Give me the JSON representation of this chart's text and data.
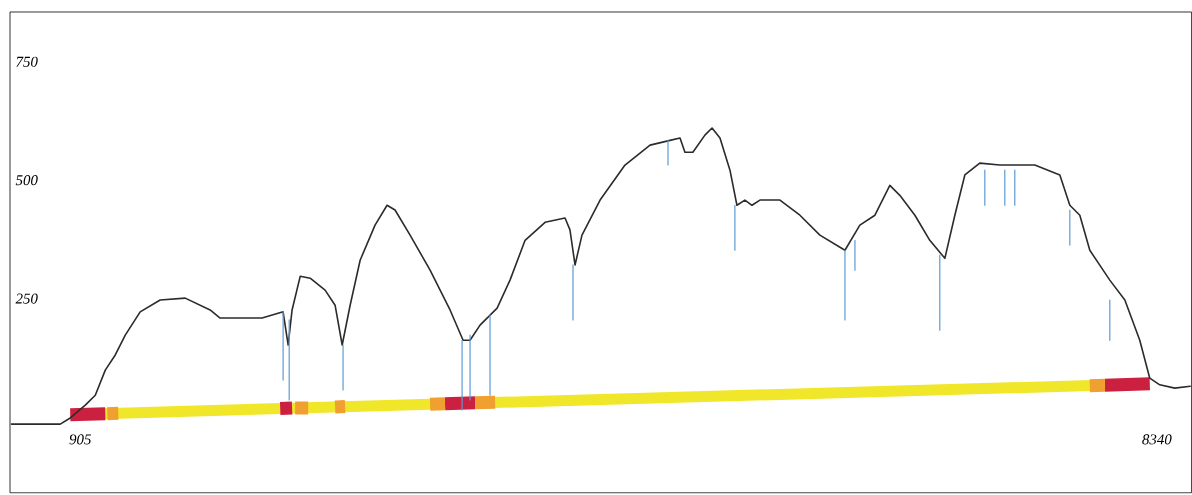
{
  "chart_data": {
    "type": "line",
    "xlim": [
      420,
      8580
    ],
    "ylim": [
      -160,
      855
    ],
    "xticks": [
      905,
      8340
    ],
    "yticks": [
      250,
      500,
      750
    ],
    "grid": false,
    "marker": "none",
    "line_style": "solid",
    "series": [
      {
        "color": "#f0e62a",
        "x": [
          940,
          8291
        ],
        "values": [
          6,
          70
        ]
      },
      {
        "color": "#cc2040",
        "x": [
          836,
          1078,
          null,
          2286,
          2368,
          null,
          3424,
          3632,
          null,
          7981,
          8291
        ],
        "values": [
          5,
          7,
          null,
          18,
          19,
          null,
          28,
          30,
          null,
          67,
          70
        ]
      },
      {
        "color": "#f0a030",
        "x": [
          1092,
          1168,
          null,
          2389,
          2479,
          null,
          2665,
          2734,
          null,
          3321,
          3424,
          null,
          3632,
          3770,
          null,
          7877,
          7981
        ],
        "values": [
          7,
          8,
          null,
          19,
          19,
          null,
          21,
          22,
          null,
          27,
          28,
          null,
          30,
          31,
          null,
          66,
          67
        ]
      },
      {
        "color": "#2b2b2b",
        "x": [
          430,
          767,
          836,
          940,
          1009,
          1078,
          1147,
          1216,
          1319,
          1457,
          1630,
          1802,
          1871,
          2044,
          2161,
          2306,
          2341,
          2368,
          2424,
          2493,
          2596,
          2665,
          2714,
          2769,
          2838,
          2941,
          3024,
          3079,
          3183,
          3321,
          3459,
          3549,
          3597,
          3666,
          3784,
          3873,
          3977,
          4115,
          4253,
          4287,
          4322,
          4370,
          4495,
          4667,
          4840,
          4978,
          5047,
          5081,
          5136,
          5219,
          5268,
          5323,
          5392,
          5440,
          5495,
          5544,
          5599,
          5737,
          5875,
          6013,
          6186,
          6289,
          6393,
          6496,
          6565,
          6669,
          6772,
          6876,
          6945,
          7014,
          7117,
          7255,
          7497,
          7670,
          7739,
          7808,
          7877,
          8015,
          8119,
          8222,
          8291,
          8360,
          8464,
          8570
        ],
        "values": [
          -15,
          -15,
          -2,
          25,
          46,
          99,
          131,
          173,
          222,
          247,
          251,
          226,
          209,
          209,
          209,
          222,
          152,
          226,
          297,
          293,
          268,
          236,
          152,
          236,
          331,
          405,
          447,
          437,
          384,
          310,
          226,
          162,
          162,
          194,
          230,
          289,
          373,
          411,
          420,
          395,
          321,
          384,
          458,
          532,
          574,
          584,
          589,
          559,
          559,
          595,
          610,
          589,
          521,
          447,
          458,
          447,
          458,
          458,
          426,
          384,
          352,
          405,
          426,
          489,
          468,
          426,
          373,
          335,
          426,
          511,
          536,
          532,
          532,
          511,
          447,
          426,
          352,
          289,
          247,
          162,
          82,
          68,
          61,
          65
        ]
      },
      {
        "color": "#5b9bd5",
        "x": [
          2306,
          2306,
          null,
          2348,
          2348,
          null,
          2720,
          2720,
          null,
          3542,
          3542,
          null,
          3597,
          3597,
          null,
          3735,
          3735,
          null,
          4308,
          4308,
          null,
          4964,
          4964,
          null,
          5426,
          5426,
          null,
          6186,
          6186,
          null,
          6255,
          6255,
          null,
          6841,
          6841,
          null,
          7152,
          7152,
          null,
          7290,
          7290,
          null,
          7359,
          7359,
          null,
          7739,
          7739,
          null,
          8015,
          8015
        ],
        "values": [
          222,
          78,
          null,
          205,
          36,
          null,
          152,
          57,
          null,
          162,
          15,
          null,
          173,
          36,
          null,
          215,
          46,
          null,
          321,
          205,
          null,
          584,
          532,
          null,
          447,
          352,
          null,
          352,
          205,
          null,
          373,
          310,
          null,
          342,
          183,
          null,
          521,
          447,
          null,
          521,
          447,
          null,
          521,
          447,
          null,
          437,
          363,
          null,
          247,
          162
        ]
      }
    ]
  }
}
